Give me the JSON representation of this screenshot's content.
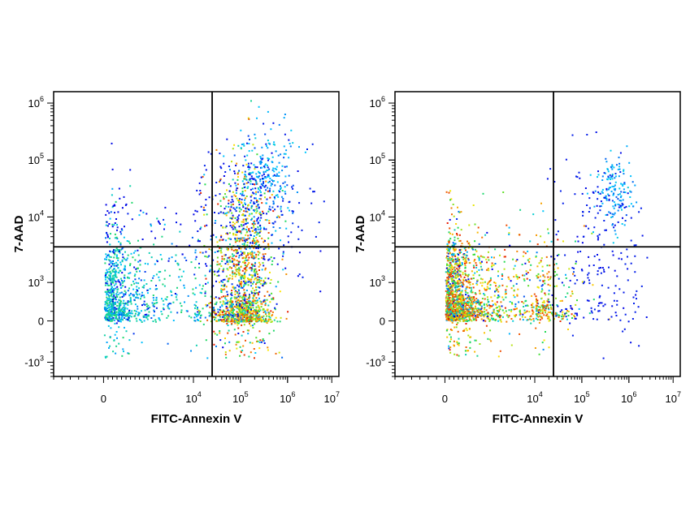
{
  "chart_data": [
    {
      "type": "scatter",
      "title": "",
      "xlabel": "FITC-Annexin V",
      "ylabel": "7-AAD",
      "x_scale": "biexponential",
      "y_scale": "biexponential",
      "xlim": [
        -3000,
        10000000
      ],
      "ylim": [
        -2000,
        1500000
      ],
      "x_ticks": [
        {
          "base": "0",
          "exp": ""
        },
        {
          "base": "10",
          "exp": "4"
        },
        {
          "base": "10",
          "exp": "5"
        },
        {
          "base": "10",
          "exp": "6"
        },
        {
          "base": "10",
          "exp": "7"
        }
      ],
      "y_ticks": [
        {
          "base": "-10",
          "exp": "3"
        },
        {
          "base": "0",
          "exp": ""
        },
        {
          "base": "10",
          "exp": "3"
        },
        {
          "base": "10",
          "exp": "4"
        },
        {
          "base": "10",
          "exp": "5"
        },
        {
          "base": "10",
          "exp": "6"
        }
      ],
      "gate_x": 25000,
      "gate_y": 3500,
      "grid": false,
      "color_map": "density: blue-cyan-green-yellow-red",
      "populations": [
        {
          "x": 2000,
          "y": 500,
          "spread_x": 0.55,
          "spread_y": 0.6,
          "count": 900,
          "density": 0.5
        },
        {
          "x": 110000,
          "y": 600,
          "spread_x": 0.3,
          "spread_y": 1.0,
          "count": 1400,
          "density": 1.0
        },
        {
          "x": 350000,
          "y": 35000,
          "spread_x": 0.3,
          "spread_y": 0.5,
          "count": 250,
          "density": 0.35
        },
        {
          "x": 150000,
          "y": 10000,
          "spread_x": 0.6,
          "spread_y": 0.7,
          "count": 250,
          "density": 0.05
        },
        {
          "x": 5000,
          "y": 5000,
          "spread_x": 0.7,
          "spread_y": 0.6,
          "count": 100,
          "density": 0.02
        }
      ]
    },
    {
      "type": "scatter",
      "title": "",
      "xlabel": "FITC-Annexin V",
      "ylabel": "7-AAD",
      "x_scale": "biexponential",
      "y_scale": "biexponential",
      "xlim": [
        -3000,
        10000000
      ],
      "ylim": [
        -2000,
        1500000
      ],
      "x_ticks": [
        {
          "base": "0",
          "exp": ""
        },
        {
          "base": "10",
          "exp": "4"
        },
        {
          "base": "10",
          "exp": "5"
        },
        {
          "base": "10",
          "exp": "6"
        },
        {
          "base": "10",
          "exp": "7"
        }
      ],
      "y_ticks": [
        {
          "base": "-10",
          "exp": "3"
        },
        {
          "base": "0",
          "exp": ""
        },
        {
          "base": "10",
          "exp": "3"
        },
        {
          "base": "10",
          "exp": "4"
        },
        {
          "base": "10",
          "exp": "5"
        },
        {
          "base": "10",
          "exp": "6"
        }
      ],
      "gate_x": 25000,
      "gate_y": 3500,
      "grid": false,
      "color_map": "density: blue-cyan-green-yellow-red",
      "populations": [
        {
          "x": 2000,
          "y": 500,
          "spread_x": 0.6,
          "spread_y": 0.55,
          "count": 1800,
          "density": 1.0
        },
        {
          "x": 500000,
          "y": 30000,
          "spread_x": 0.2,
          "spread_y": 0.3,
          "count": 150,
          "density": 0.35
        },
        {
          "x": 200000,
          "y": 2000,
          "spread_x": 0.5,
          "spread_y": 0.9,
          "count": 200,
          "density": 0.05
        }
      ]
    }
  ]
}
